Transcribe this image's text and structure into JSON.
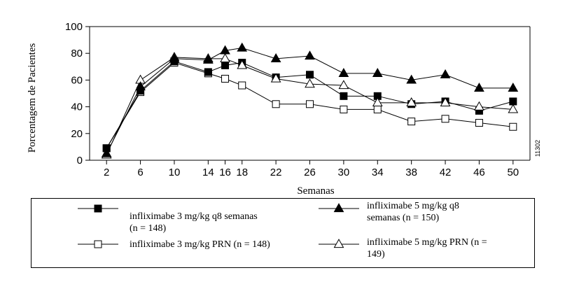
{
  "chart_data": {
    "type": "line",
    "xlabel": "Semanas",
    "ylabel": "Porcentagem de Pacientes",
    "figure_code": "11302",
    "x": [
      2,
      6,
      10,
      14,
      16,
      18,
      22,
      26,
      30,
      34,
      38,
      42,
      46,
      50
    ],
    "xticks": [
      "2",
      "6",
      "10",
      "14",
      "16",
      "18",
      "22",
      "26",
      "30",
      "34",
      "38",
      "42",
      "46",
      "50"
    ],
    "yticks": [
      "0",
      "20",
      "40",
      "60",
      "80",
      "100"
    ],
    "ylim": [
      0,
      100
    ],
    "xlim": [
      0,
      52
    ],
    "grid": false,
    "legend_position": "bottom",
    "series": [
      {
        "name_lines": [
          "infliximabe 3 mg/kg q8 semanas",
          "(n = 148)"
        ],
        "marker": "square-filled",
        "values": [
          9,
          52,
          74,
          66,
          71,
          73,
          62,
          64,
          48,
          48,
          42,
          44,
          37,
          44
        ]
      },
      {
        "name_lines": [
          "infliximabe 5 mg/kg q8",
          "semanas (n = 150)"
        ],
        "marker": "triangle-filled",
        "values": [
          5,
          55,
          76,
          75,
          82,
          84,
          76,
          78,
          65,
          65,
          60,
          64,
          54,
          54
        ]
      },
      {
        "name_lines": [
          "infliximabe 3 mg/kg PRN (n = 148)"
        ],
        "marker": "square-open",
        "values": [
          9,
          51,
          73,
          65,
          61,
          56,
          42,
          42,
          38,
          38,
          29,
          31,
          28,
          25
        ]
      },
      {
        "name_lines": [
          "infliximabe 5 mg/kg PRN (n =",
          "149)"
        ],
        "marker": "triangle-open",
        "values": [
          4,
          60,
          77,
          76,
          76,
          71,
          61,
          57,
          56,
          43,
          43,
          43,
          40,
          38
        ]
      }
    ]
  }
}
